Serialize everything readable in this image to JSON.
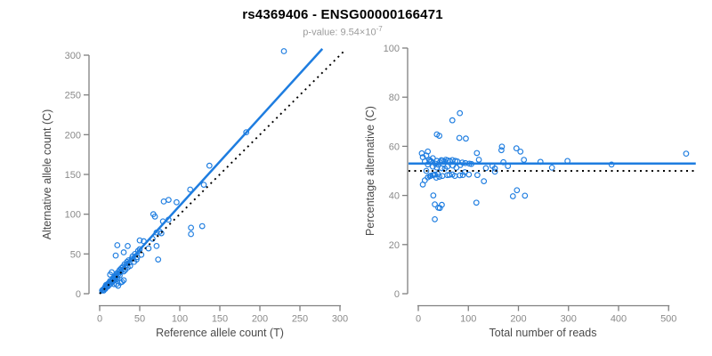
{
  "title": "rs4369406 - ENSG00000166471",
  "subtitle": {
    "label": "p-value:",
    "value": "9.54×10",
    "exponent": "-7"
  },
  "colors": {
    "accent_blue": "#1e7de0",
    "identity_line": "#000000",
    "axis_line": "#808080",
    "tick_label": "#8a8a8a",
    "axis_title": "#4a4a4a",
    "title_text": "#000000",
    "subtitle_text": "#9b9b9b",
    "background": "#ffffff"
  },
  "chart_data": [
    {
      "type": "scatter",
      "panel": "left",
      "xlabel": "Reference allele count (T)",
      "ylabel": "Alternative allele count (C)",
      "xlim": [
        0,
        300
      ],
      "ylim": [
        0,
        306
      ],
      "xticks": [
        0,
        50,
        100,
        150,
        200,
        250,
        300
      ],
      "yticks": [
        0,
        50,
        100,
        150,
        200,
        250,
        300
      ],
      "grid": false,
      "marker": "open-circle",
      "points": [
        [
          3,
          4
        ],
        [
          4,
          5
        ],
        [
          5,
          4
        ],
        [
          6,
          7
        ],
        [
          7,
          6
        ],
        [
          7,
          9
        ],
        [
          8,
          8
        ],
        [
          8,
          11
        ],
        [
          9,
          10
        ],
        [
          10,
          9
        ],
        [
          10,
          12
        ],
        [
          11,
          13
        ],
        [
          12,
          14
        ],
        [
          12,
          11
        ],
        [
          13,
          12
        ],
        [
          13,
          16
        ],
        [
          13,
          24
        ],
        [
          14,
          15
        ],
        [
          15,
          27
        ],
        [
          15,
          14
        ],
        [
          16,
          18
        ],
        [
          16,
          15
        ],
        [
          17,
          16
        ],
        [
          17,
          20
        ],
        [
          18,
          19
        ],
        [
          18,
          12
        ],
        [
          19,
          17
        ],
        [
          19,
          21
        ],
        [
          20,
          23
        ],
        [
          20,
          19
        ],
        [
          20,
          48
        ],
        [
          21,
          25
        ],
        [
          21,
          12
        ],
        [
          22,
          20
        ],
        [
          22,
          26
        ],
        [
          22,
          61
        ],
        [
          23,
          24
        ],
        [
          23,
          10
        ],
        [
          24,
          28
        ],
        [
          25,
          23
        ],
        [
          25,
          30
        ],
        [
          26,
          27
        ],
        [
          26,
          14
        ],
        [
          27,
          32
        ],
        [
          28,
          30
        ],
        [
          28,
          15
        ],
        [
          29,
          34
        ],
        [
          30,
          28
        ],
        [
          30,
          17
        ],
        [
          30,
          52
        ],
        [
          31,
          37
        ],
        [
          32,
          30
        ],
        [
          33,
          36
        ],
        [
          34,
          40
        ],
        [
          35,
          33
        ],
        [
          35,
          60
        ],
        [
          36,
          42
        ],
        [
          37,
          39
        ],
        [
          38,
          35
        ],
        [
          40,
          44
        ],
        [
          41,
          47
        ],
        [
          43,
          40
        ],
        [
          44,
          50
        ],
        [
          46,
          43
        ],
        [
          48,
          54
        ],
        [
          50,
          56
        ],
        [
          52,
          49
        ],
        [
          47,
          46
        ],
        [
          50,
          67
        ],
        [
          55,
          66
        ],
        [
          61,
          57
        ],
        [
          66,
          69
        ],
        [
          67,
          100
        ],
        [
          69,
          97
        ],
        [
          71,
          60
        ],
        [
          71,
          77
        ],
        [
          73,
          43
        ],
        [
          75,
          78
        ],
        [
          77,
          76
        ],
        [
          79,
          91
        ],
        [
          80,
          116
        ],
        [
          86,
          118
        ],
        [
          86,
          93
        ],
        [
          96,
          115
        ],
        [
          113,
          131
        ],
        [
          114,
          75
        ],
        [
          114,
          83
        ],
        [
          128,
          85
        ],
        [
          130,
          137
        ],
        [
          137,
          161
        ],
        [
          183,
          203
        ],
        [
          230,
          305
        ]
      ],
      "lines": [
        {
          "name": "fit-line",
          "style": "solid",
          "color": "#1e7de0",
          "from": [
            0,
            0
          ],
          "to": [
            278,
            308
          ]
        },
        {
          "name": "identity-line",
          "style": "dotted",
          "color": "#000000",
          "from": [
            0,
            0
          ],
          "to": [
            306,
            306
          ]
        }
      ]
    },
    {
      "type": "scatter",
      "panel": "right",
      "xlabel": "Total number of reads",
      "ylabel": "Percentage alternative (C)",
      "xlim": [
        0,
        540
      ],
      "ylim": [
        0,
        100
      ],
      "xticks": [
        0,
        100,
        200,
        300,
        400,
        500
      ],
      "yticks": [
        0,
        20,
        40,
        60,
        80,
        100
      ],
      "grid": false,
      "marker": "open-circle",
      "points_source": "derived from left panel points: x = ref + alt, y = 100 * alt / (ref + alt)",
      "lines": [
        {
          "name": "mean-percentage-line",
          "style": "solid",
          "color": "#1e7de0",
          "y": 53
        },
        {
          "name": "fifty-percent-line",
          "style": "dotted",
          "color": "#000000",
          "y": 50
        }
      ]
    }
  ]
}
